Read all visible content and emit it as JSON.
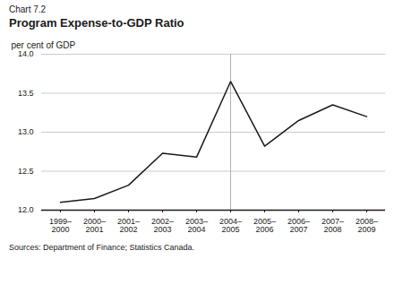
{
  "chart_data": {
    "type": "line",
    "title": "Program Expense-to-GDP Ratio",
    "subtitle": "Chart 7.2",
    "ylabel": "per cent of GDP",
    "annotations": [
      "Sources: Department of Finance; Statistics Canada."
    ],
    "categories": [
      "1999–\n2000",
      "2000–\n2001",
      "2001–\n2002",
      "2002–\n2003",
      "2003–\n2004",
      "2004–\n2005",
      "2005–\n2006",
      "2006–\n2007",
      "2007–\n2008",
      "2008–\n2009"
    ],
    "values": [
      12.1,
      12.15,
      12.32,
      12.73,
      12.68,
      13.65,
      12.82,
      13.15,
      13.35,
      13.2
    ],
    "color": "#1a1a1a",
    "vline": {
      "category": "2004–\n2005",
      "color": "#b0b0b0"
    },
    "ylim": [
      12.0,
      14.0
    ],
    "yticks": [
      {
        "value": 12.0,
        "label": "12.0"
      },
      12.5,
      {
        "value": 13.0,
        "label": "13.0"
      },
      13.5,
      {
        "value": 14.0,
        "label": "14.0"
      }
    ],
    "grid": true
  }
}
